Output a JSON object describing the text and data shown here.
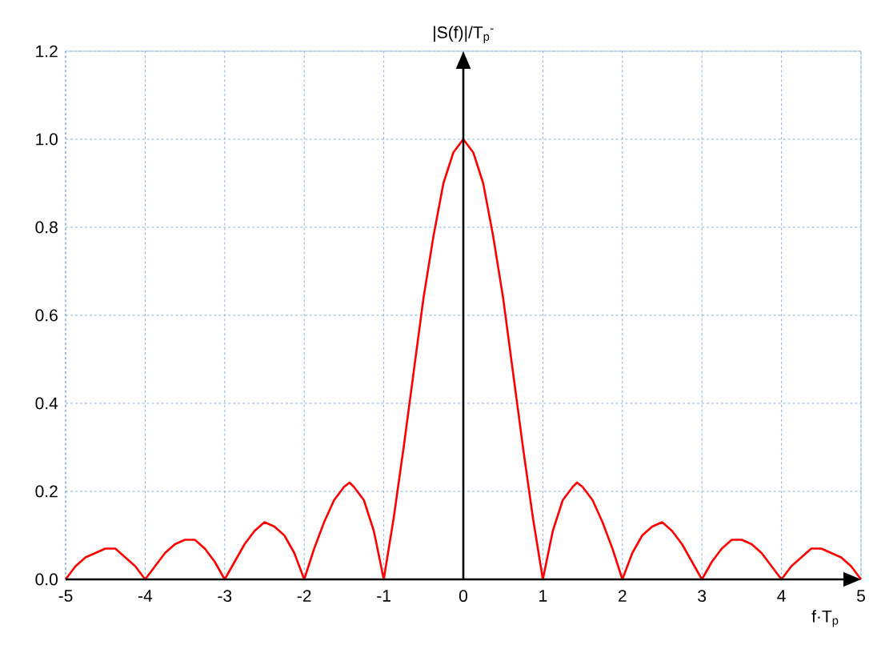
{
  "chart_data": {
    "type": "line",
    "xlabel": "f·T$_{p}$",
    "ylabel": "|S(f)|/T$_{p}$$^{-}$",
    "x": [
      -5,
      -4.875,
      -4.75,
      -4.625,
      -4.5,
      -4.375,
      -4.25,
      -4.125,
      -4,
      -3.875,
      -3.75,
      -3.625,
      -3.5,
      -3.375,
      -3.25,
      -3.125,
      -3,
      -2.875,
      -2.75,
      -2.625,
      -2.5,
      -2.375,
      -2.25,
      -2.125,
      -2,
      -1.875,
      -1.75,
      -1.625,
      -1.5,
      -1.43,
      -1.375,
      -1.25,
      -1.125,
      -1,
      -0.875,
      -0.75,
      -0.625,
      -0.5,
      -0.375,
      -0.25,
      -0.125,
      0,
      0.125,
      0.25,
      0.375,
      0.5,
      0.625,
      0.75,
      0.875,
      1,
      1.125,
      1.25,
      1.375,
      1.43,
      1.5,
      1.625,
      1.75,
      1.875,
      2,
      2.125,
      2.25,
      2.375,
      2.5,
      2.625,
      2.75,
      2.875,
      3,
      3.125,
      3.25,
      3.375,
      3.5,
      3.625,
      3.75,
      3.875,
      4,
      4.125,
      4.25,
      4.375,
      4.5,
      4.625,
      4.75,
      4.875,
      5
    ],
    "values": [
      0,
      0.03,
      0.05,
      0.06,
      0.07,
      0.07,
      0.05,
      0.03,
      0,
      0.03,
      0.06,
      0.08,
      0.09,
      0.09,
      0.07,
      0.04,
      0,
      0.04,
      0.08,
      0.11,
      0.13,
      0.12,
      0.1,
      0.06,
      0,
      0.07,
      0.13,
      0.18,
      0.21,
      0.22,
      0.21,
      0.18,
      0.11,
      0,
      0.14,
      0.3,
      0.47,
      0.64,
      0.78,
      0.9,
      0.97,
      1,
      0.97,
      0.9,
      0.78,
      0.64,
      0.47,
      0.3,
      0.14,
      0,
      0.11,
      0.18,
      0.21,
      0.22,
      0.21,
      0.18,
      0.13,
      0.07,
      0,
      0.06,
      0.1,
      0.12,
      0.13,
      0.11,
      0.08,
      0.04,
      0,
      0.04,
      0.07,
      0.09,
      0.09,
      0.08,
      0.06,
      0.03,
      0,
      0.03,
      0.05,
      0.07,
      0.07,
      0.06,
      0.05,
      0.03,
      0
    ],
    "color": "#ff0000",
    "line_style": "solid",
    "xlim": [
      -5,
      5
    ],
    "ylim": [
      0,
      1.2
    ],
    "xticks": [
      {
        "value": -5,
        "label": "-5"
      },
      {
        "value": -4,
        "label": "-4"
      },
      {
        "value": -3,
        "label": "-3"
      },
      {
        "value": -2,
        "label": "-2"
      },
      {
        "value": -1,
        "label": "-1"
      },
      {
        "value": 0,
        "label": "0"
      },
      {
        "value": 1,
        "label": "1"
      },
      {
        "value": 2,
        "label": "2"
      },
      {
        "value": 3,
        "label": "3"
      },
      {
        "value": 4,
        "label": "4"
      },
      {
        "value": 5,
        "label": "5"
      }
    ],
    "yticks": [
      {
        "value": 0,
        "label": "0.0"
      },
      {
        "value": 0.2,
        "label": "0.2"
      },
      {
        "value": 0.4,
        "label": "0.4"
      },
      {
        "value": 0.6,
        "label": "0.6"
      },
      {
        "value": 0.8,
        "label": "0.8"
      },
      {
        "value": 1,
        "label": "1.0"
      },
      {
        "value": 1.2,
        "label": "1.2"
      }
    ],
    "grid": true
  }
}
